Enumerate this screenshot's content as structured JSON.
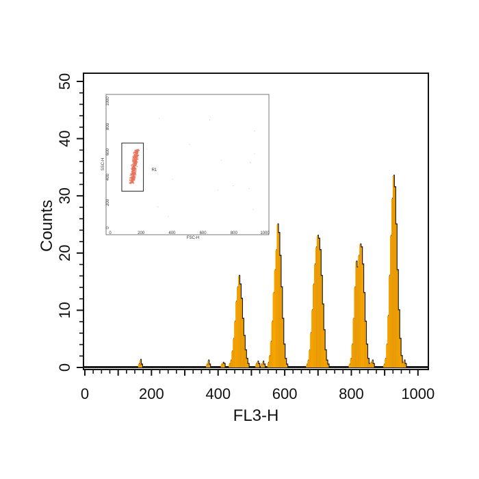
{
  "chart_data": [
    {
      "type": "histogram",
      "xlabel": "FL3-H",
      "ylabel": "Counts",
      "xlim": [
        0,
        1023
      ],
      "ylim": [
        0,
        50
      ],
      "x_ticks": [
        "0",
        "200",
        "400",
        "600",
        "800",
        "1000"
      ],
      "y_ticks": [
        "0",
        "10",
        "20",
        "30",
        "40",
        "50"
      ],
      "fill_color": "#F7A400",
      "shadow_color": "#1a1a1a",
      "bin_width": 4,
      "bins": [
        {
          "x": 160,
          "y": 0.6
        },
        {
          "x": 164,
          "y": 1.3
        },
        {
          "x": 168,
          "y": 0.5
        },
        {
          "x": 364,
          "y": 0.5
        },
        {
          "x": 368,
          "y": 1.2
        },
        {
          "x": 372,
          "y": 0.5
        },
        {
          "x": 408,
          "y": 0.5
        },
        {
          "x": 412,
          "y": 0.8
        },
        {
          "x": 416,
          "y": 0.6
        },
        {
          "x": 432,
          "y": 0.6
        },
        {
          "x": 436,
          "y": 1.2
        },
        {
          "x": 440,
          "y": 2.8
        },
        {
          "x": 444,
          "y": 5.0
        },
        {
          "x": 448,
          "y": 8.0
        },
        {
          "x": 452,
          "y": 11.5
        },
        {
          "x": 456,
          "y": 14.0
        },
        {
          "x": 460,
          "y": 16.0
        },
        {
          "x": 464,
          "y": 14.5
        },
        {
          "x": 468,
          "y": 12.0
        },
        {
          "x": 472,
          "y": 8.5
        },
        {
          "x": 476,
          "y": 5.5
        },
        {
          "x": 480,
          "y": 3.0
        },
        {
          "x": 484,
          "y": 1.5
        },
        {
          "x": 488,
          "y": 0.6
        },
        {
          "x": 512,
          "y": 0.6
        },
        {
          "x": 516,
          "y": 1.0
        },
        {
          "x": 520,
          "y": 0.6
        },
        {
          "x": 528,
          "y": 0.5
        },
        {
          "x": 532,
          "y": 1.0
        },
        {
          "x": 536,
          "y": 0.5
        },
        {
          "x": 548,
          "y": 0.8
        },
        {
          "x": 552,
          "y": 2.0
        },
        {
          "x": 556,
          "y": 4.5
        },
        {
          "x": 560,
          "y": 8.0
        },
        {
          "x": 564,
          "y": 13.0
        },
        {
          "x": 568,
          "y": 17.0
        },
        {
          "x": 572,
          "y": 20.5
        },
        {
          "x": 576,
          "y": 25.0
        },
        {
          "x": 580,
          "y": 23.5
        },
        {
          "x": 584,
          "y": 19.5
        },
        {
          "x": 588,
          "y": 14.0
        },
        {
          "x": 592,
          "y": 8.5
        },
        {
          "x": 596,
          "y": 4.0
        },
        {
          "x": 600,
          "y": 1.5
        },
        {
          "x": 604,
          "y": 0.5
        },
        {
          "x": 664,
          "y": 0.5
        },
        {
          "x": 668,
          "y": 1.2
        },
        {
          "x": 672,
          "y": 3.0
        },
        {
          "x": 676,
          "y": 6.0
        },
        {
          "x": 680,
          "y": 10.0
        },
        {
          "x": 684,
          "y": 14.5
        },
        {
          "x": 688,
          "y": 18.0
        },
        {
          "x": 692,
          "y": 21.0
        },
        {
          "x": 696,
          "y": 23.0
        },
        {
          "x": 700,
          "y": 22.5
        },
        {
          "x": 704,
          "y": 20.5
        },
        {
          "x": 708,
          "y": 16.0
        },
        {
          "x": 712,
          "y": 11.0
        },
        {
          "x": 716,
          "y": 6.5
        },
        {
          "x": 720,
          "y": 3.0
        },
        {
          "x": 724,
          "y": 1.2
        },
        {
          "x": 728,
          "y": 0.5
        },
        {
          "x": 792,
          "y": 0.5
        },
        {
          "x": 796,
          "y": 1.5
        },
        {
          "x": 800,
          "y": 4.0
        },
        {
          "x": 804,
          "y": 8.5
        },
        {
          "x": 808,
          "y": 14.0
        },
        {
          "x": 812,
          "y": 18.5
        },
        {
          "x": 816,
          "y": 17.5
        },
        {
          "x": 820,
          "y": 19.5
        },
        {
          "x": 824,
          "y": 21.5
        },
        {
          "x": 828,
          "y": 21.0
        },
        {
          "x": 832,
          "y": 18.0
        },
        {
          "x": 836,
          "y": 13.0
        },
        {
          "x": 840,
          "y": 8.0
        },
        {
          "x": 844,
          "y": 4.0
        },
        {
          "x": 848,
          "y": 1.5
        },
        {
          "x": 852,
          "y": 0.6
        },
        {
          "x": 856,
          "y": 0.8
        },
        {
          "x": 860,
          "y": 1.2
        },
        {
          "x": 864,
          "y": 0.6
        },
        {
          "x": 896,
          "y": 0.5
        },
        {
          "x": 900,
          "y": 1.5
        },
        {
          "x": 904,
          "y": 4.0
        },
        {
          "x": 908,
          "y": 9.0
        },
        {
          "x": 912,
          "y": 16.0
        },
        {
          "x": 916,
          "y": 23.0
        },
        {
          "x": 920,
          "y": 29.5
        },
        {
          "x": 924,
          "y": 33.5
        },
        {
          "x": 928,
          "y": 31.5
        },
        {
          "x": 932,
          "y": 25.0
        },
        {
          "x": 936,
          "y": 17.0
        },
        {
          "x": 940,
          "y": 10.0
        },
        {
          "x": 944,
          "y": 5.0
        },
        {
          "x": 948,
          "y": 2.0
        },
        {
          "x": 952,
          "y": 0.8
        },
        {
          "x": 956,
          "y": 1.2
        },
        {
          "x": 960,
          "y": 0.6
        }
      ]
    },
    {
      "type": "scatter",
      "xlabel": "FSC-H",
      "ylabel": "SSC-H",
      "xlim": [
        0,
        1000
      ],
      "ylim": [
        0,
        1000
      ],
      "x_ticks": [
        "0",
        "200",
        "400",
        "600",
        "800",
        "1000"
      ],
      "y_ticks": [
        "0",
        "200",
        "400",
        "600",
        "800",
        "1000"
      ],
      "point_color": "#E8735A",
      "gate": {
        "label": "R1",
        "x_range": [
          75,
          215
        ],
        "y_range": [
          290,
          670
        ]
      },
      "cluster": {
        "x_center": 140,
        "x_spread": 15,
        "y_range": [
          350,
          620
        ],
        "lean": 0.12
      }
    }
  ]
}
